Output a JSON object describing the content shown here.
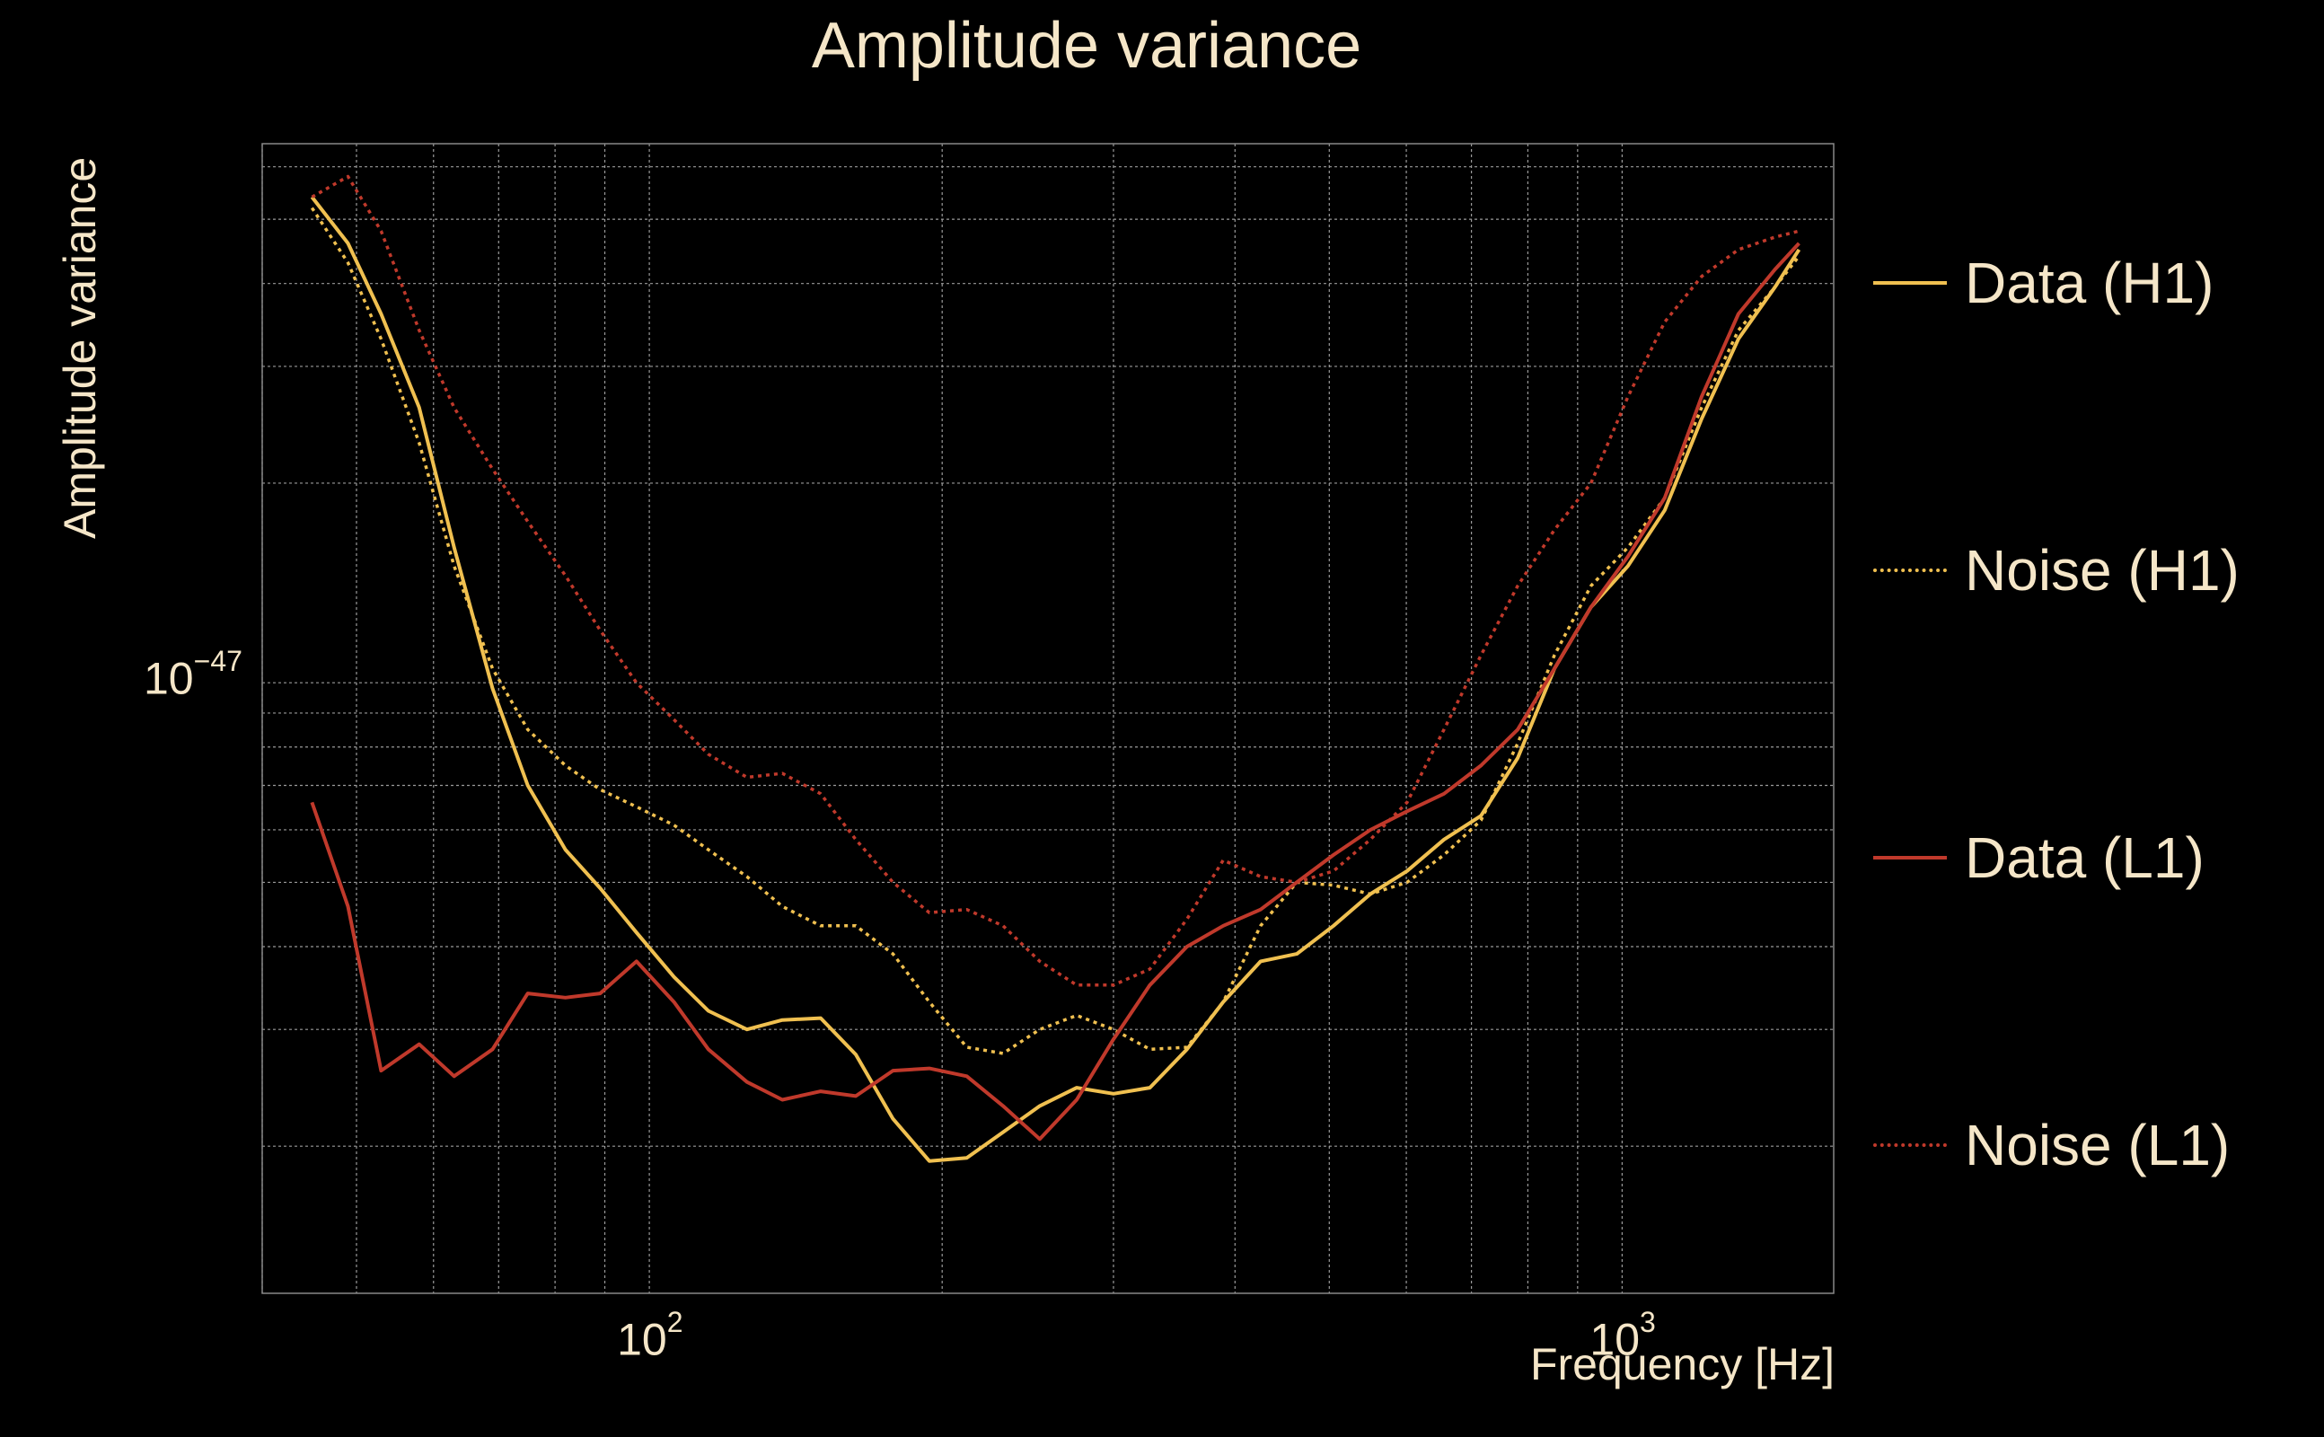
{
  "chart_data": {
    "type": "line",
    "title": "Amplitude variance",
    "xlabel": "Frequency [Hz]",
    "ylabel": "Amplitude variance",
    "xscale": "log",
    "yscale": "log",
    "xlim": [
      40,
      1650
    ],
    "ylim": [
      1.2e-48,
      6.5e-47
    ],
    "grid": true,
    "legend_position": "right",
    "x_ticks": [
      {
        "base": "10",
        "exp": "2"
      },
      {
        "base": "10",
        "exp": "3"
      }
    ],
    "y_ticks": [
      {
        "base": "10",
        "exp": "−47"
      }
    ],
    "series": [
      {
        "name": "Data (H1)",
        "color": "#f0c050",
        "dash": "solid",
        "x": [
          45,
          49,
          53,
          58,
          63,
          69,
          75,
          82,
          89,
          97,
          106,
          115,
          126,
          137,
          150,
          163,
          178,
          194,
          212,
          231,
          252,
          275,
          300,
          327,
          357,
          389,
          425,
          463,
          505,
          551,
          601,
          656,
          716,
          781,
          852,
          929,
          1014,
          1106,
          1207,
          1317,
          1436,
          1520
        ],
        "y": [
          5.4e-47,
          4.6e-47,
          3.6e-47,
          2.6e-47,
          1.6e-47,
          9.8e-48,
          7e-48,
          5.6e-48,
          4.9e-48,
          4.2e-48,
          3.6e-48,
          3.2e-48,
          3e-48,
          3.1e-48,
          3.12e-48,
          2.75e-48,
          2.2e-48,
          1.9e-48,
          1.92e-48,
          2.1e-48,
          2.3e-48,
          2.45e-48,
          2.4e-48,
          2.45e-48,
          2.8e-48,
          3.3e-48,
          3.8e-48,
          3.9e-48,
          4.3e-48,
          4.8e-48,
          5.2e-48,
          5.8e-48,
          6.3e-48,
          7.7e-48,
          1.05e-47,
          1.3e-47,
          1.5e-47,
          1.82e-47,
          2.5e-47,
          3.3e-47,
          3.95e-47,
          4.5e-47
        ]
      },
      {
        "name": "Noise (H1)",
        "color": "#f0c050",
        "dash": "dotted",
        "x": [
          45,
          49,
          53,
          58,
          63,
          69,
          75,
          82,
          89,
          97,
          106,
          115,
          126,
          137,
          150,
          163,
          178,
          194,
          212,
          231,
          252,
          275,
          300,
          327,
          357,
          389,
          425,
          463,
          505,
          551,
          601,
          656,
          716,
          781,
          852,
          929,
          1014,
          1106,
          1207,
          1317,
          1436,
          1520
        ],
        "y": [
          5.2e-47,
          4.3e-47,
          3.3e-47,
          2.3e-47,
          1.5e-47,
          1.05e-47,
          8.5e-48,
          7.5e-48,
          6.9e-48,
          6.5e-48,
          6.1e-48,
          5.6e-48,
          5.1e-48,
          4.6e-48,
          4.3e-48,
          4.3e-48,
          3.9e-48,
          3.3e-48,
          2.82e-48,
          2.76e-48,
          3e-48,
          3.15e-48,
          3e-48,
          2.8e-48,
          2.82e-48,
          3.3e-48,
          4.3e-48,
          5e-48,
          4.95e-48,
          4.8e-48,
          5e-48,
          5.5e-48,
          6.2e-48,
          8.1e-48,
          1.1e-47,
          1.4e-47,
          1.6e-47,
          1.9e-47,
          2.6e-47,
          3.4e-47,
          3.95e-47,
          4.4e-47
        ]
      },
      {
        "name": "Data (L1)",
        "color": "#c0392b",
        "dash": "solid",
        "x": [
          45,
          49,
          53,
          58,
          63,
          69,
          75,
          82,
          89,
          97,
          106,
          115,
          126,
          137,
          150,
          163,
          178,
          194,
          212,
          231,
          252,
          275,
          300,
          327,
          357,
          389,
          425,
          463,
          505,
          551,
          601,
          656,
          716,
          781,
          852,
          929,
          1014,
          1106,
          1207,
          1317,
          1436,
          1520
        ],
        "y": [
          6.6e-48,
          4.6e-48,
          2.6e-48,
          2.85e-48,
          2.55e-48,
          2.8e-48,
          3.4e-48,
          3.35e-48,
          3.4e-48,
          3.8e-48,
          3.3e-48,
          2.8e-48,
          2.5e-48,
          2.35e-48,
          2.42e-48,
          2.38e-48,
          2.6e-48,
          2.62e-48,
          2.55e-48,
          2.3e-48,
          2.05e-48,
          2.35e-48,
          2.9e-48,
          3.5e-48,
          4e-48,
          4.3e-48,
          4.55e-48,
          5e-48,
          5.5e-48,
          6e-48,
          6.4e-48,
          6.8e-48,
          7.5e-48,
          8.5e-48,
          1.05e-47,
          1.3e-47,
          1.55e-47,
          1.9e-47,
          2.7e-47,
          3.6e-47,
          4.2e-47,
          4.6e-47
        ]
      },
      {
        "name": "Noise (L1)",
        "color": "#c0392b",
        "dash": "dotted",
        "x": [
          45,
          49,
          53,
          58,
          63,
          69,
          75,
          82,
          89,
          97,
          106,
          115,
          126,
          137,
          150,
          163,
          178,
          194,
          212,
          231,
          252,
          275,
          300,
          327,
          357,
          389,
          425,
          463,
          505,
          551,
          601,
          656,
          716,
          781,
          852,
          929,
          1014,
          1106,
          1207,
          1317,
          1436,
          1520
        ],
        "y": [
          5.4e-47,
          5.8e-47,
          4.8e-47,
          3.4e-47,
          2.6e-47,
          2.1e-47,
          1.75e-47,
          1.45e-47,
          1.2e-47,
          1e-47,
          8.8e-48,
          7.8e-48,
          7.2e-48,
          7.3e-48,
          6.8e-48,
          5.8e-48,
          5e-48,
          4.5e-48,
          4.55e-48,
          4.3e-48,
          3.8e-48,
          3.5e-48,
          3.5e-48,
          3.7e-48,
          4.4e-48,
          5.4e-48,
          5.1e-48,
          5e-48,
          5.2e-48,
          5.8e-48,
          6.6e-48,
          8.5e-48,
          1.1e-47,
          1.4e-47,
          1.7e-47,
          2e-47,
          2.7e-47,
          3.5e-47,
          4.1e-47,
          4.5e-47,
          4.7e-47,
          4.8e-47
        ]
      }
    ]
  }
}
